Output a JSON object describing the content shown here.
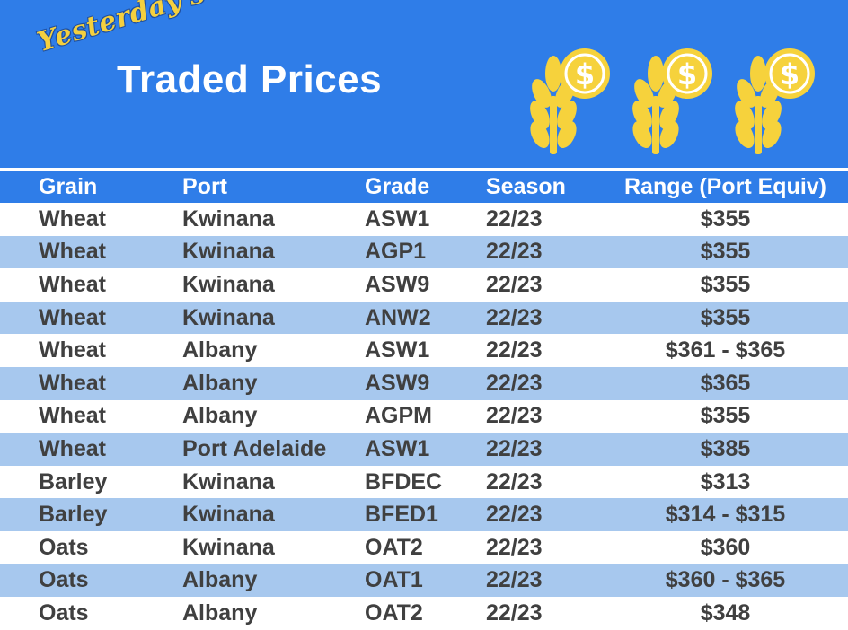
{
  "header": {
    "script_title": "Yesterday's",
    "title": "Traded Prices",
    "icons": [
      "wheat-dollar-icon",
      "wheat-dollar-icon",
      "wheat-dollar-icon"
    ],
    "colors": {
      "banner": "#2f7de8",
      "script": "#f4d03f",
      "icon": "#f6d23c",
      "alt_row": "#a7c8ee"
    }
  },
  "table": {
    "columns": [
      "Grain",
      "Port",
      "Grade",
      "Season",
      "Range (Port Equiv)"
    ],
    "rows": [
      [
        "Wheat",
        "Kwinana",
        "ASW1",
        "22/23",
        "$355"
      ],
      [
        "Wheat",
        "Kwinana",
        "AGP1",
        "22/23",
        "$355"
      ],
      [
        "Wheat",
        "Kwinana",
        "ASW9",
        "22/23",
        "$355"
      ],
      [
        "Wheat",
        "Kwinana",
        "ANW2",
        "22/23",
        "$355"
      ],
      [
        "Wheat",
        "Albany",
        "ASW1",
        "22/23",
        "$361 - $365"
      ],
      [
        "Wheat",
        "Albany",
        "ASW9",
        "22/23",
        "$365"
      ],
      [
        "Wheat",
        "Albany",
        "AGPM",
        "22/23",
        "$355"
      ],
      [
        "Wheat",
        "Port Adelaide",
        "ASW1",
        "22/23",
        "$385"
      ],
      [
        "Barley",
        "Kwinana",
        "BFDEC",
        "22/23",
        "$313"
      ],
      [
        "Barley",
        "Kwinana",
        "BFED1",
        "22/23",
        "$314 - $315"
      ],
      [
        "Oats",
        "Kwinana",
        "OAT2",
        "22/23",
        "$360"
      ],
      [
        "Oats",
        "Albany",
        "OAT1",
        "22/23",
        "$360 - $365"
      ],
      [
        "Oats",
        "Albany",
        "OAT2",
        "22/23",
        "$348"
      ]
    ]
  }
}
